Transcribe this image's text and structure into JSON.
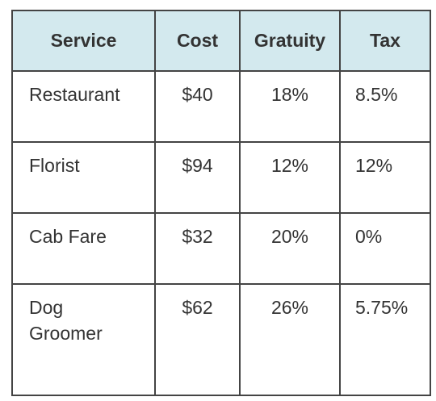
{
  "table": {
    "headers": [
      "Service",
      "Cost",
      "Gratuity",
      "Tax"
    ],
    "rows": [
      {
        "service": "Restaurant",
        "cost": "$40",
        "gratuity": "18%",
        "tax": "8.5%"
      },
      {
        "service": "Florist",
        "cost": "$94",
        "gratuity": "12%",
        "tax": "12%"
      },
      {
        "service": "Cab Fare",
        "cost": "$32",
        "gratuity": "20%",
        "tax": "0%"
      },
      {
        "service": "Dog Groomer",
        "cost": "$62",
        "gratuity": "26%",
        "tax": "5.75%"
      }
    ]
  },
  "colors": {
    "header_bg": "#d3e9ee",
    "border": "#444444",
    "text": "#333333"
  }
}
